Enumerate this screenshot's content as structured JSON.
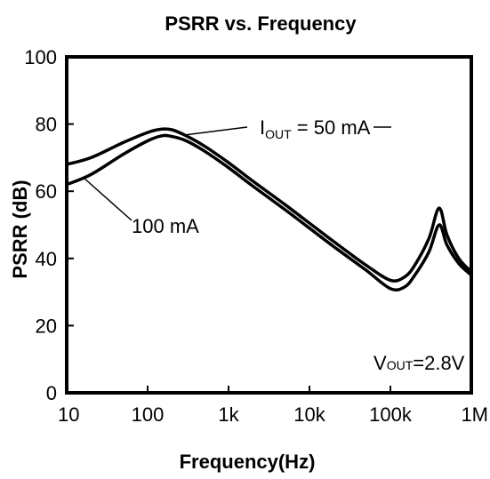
{
  "chart_data": {
    "type": "line",
    "title": "PSRR vs. Frequency",
    "xlabel": "Frequency(Hz)",
    "ylabel": "PSRR (dB)",
    "x_scale": "log",
    "xlim": [
      10,
      1000000
    ],
    "ylim": [
      0,
      100
    ],
    "x_ticks": [
      10,
      100,
      1000,
      10000,
      100000,
      1000000
    ],
    "x_tick_labels": [
      "10",
      "100",
      "1k",
      "10k",
      "100k",
      "1M"
    ],
    "y_ticks": [
      0,
      20,
      40,
      60,
      80,
      100
    ],
    "y_tick_labels": [
      "0",
      "20",
      "40",
      "60",
      "80",
      "100"
    ],
    "grid": false,
    "series": [
      {
        "name": "IOUT = 50 mA",
        "points": [
          [
            10,
            68
          ],
          [
            20,
            70
          ],
          [
            50,
            74.5
          ],
          [
            100,
            77.5
          ],
          [
            150,
            78.5
          ],
          [
            200,
            78.3
          ],
          [
            300,
            76.5
          ],
          [
            500,
            73.5
          ],
          [
            1000,
            68.5
          ],
          [
            2000,
            63
          ],
          [
            5000,
            56
          ],
          [
            10000,
            50.5
          ],
          [
            20000,
            45
          ],
          [
            50000,
            38
          ],
          [
            100000,
            33.5
          ],
          [
            150000,
            34.5
          ],
          [
            200000,
            38
          ],
          [
            300000,
            46
          ],
          [
            400000,
            55
          ],
          [
            500000,
            47
          ],
          [
            700000,
            40
          ],
          [
            1000000,
            36
          ]
        ]
      },
      {
        "name": "100 mA",
        "points": [
          [
            10,
            62
          ],
          [
            20,
            65
          ],
          [
            50,
            71
          ],
          [
            100,
            75
          ],
          [
            150,
            76.5
          ],
          [
            200,
            76.3
          ],
          [
            300,
            75
          ],
          [
            500,
            72
          ],
          [
            1000,
            67
          ],
          [
            2000,
            61.5
          ],
          [
            5000,
            54.5
          ],
          [
            10000,
            49
          ],
          [
            20000,
            43.5
          ],
          [
            50000,
            36.5
          ],
          [
            100000,
            31
          ],
          [
            150000,
            31.5
          ],
          [
            200000,
            35
          ],
          [
            300000,
            42
          ],
          [
            400000,
            50
          ],
          [
            500000,
            44
          ],
          [
            700000,
            38.5
          ],
          [
            1000000,
            35
          ]
        ]
      }
    ],
    "annotations": {
      "iout_prefix": "I",
      "iout_subscript": "OUT",
      "iout_suffix": " = 50 mA",
      "label_100": "100 mA",
      "vout_prefix": "V",
      "vout_subscript": "OUT",
      "vout_suffix": "=2.8V"
    }
  }
}
